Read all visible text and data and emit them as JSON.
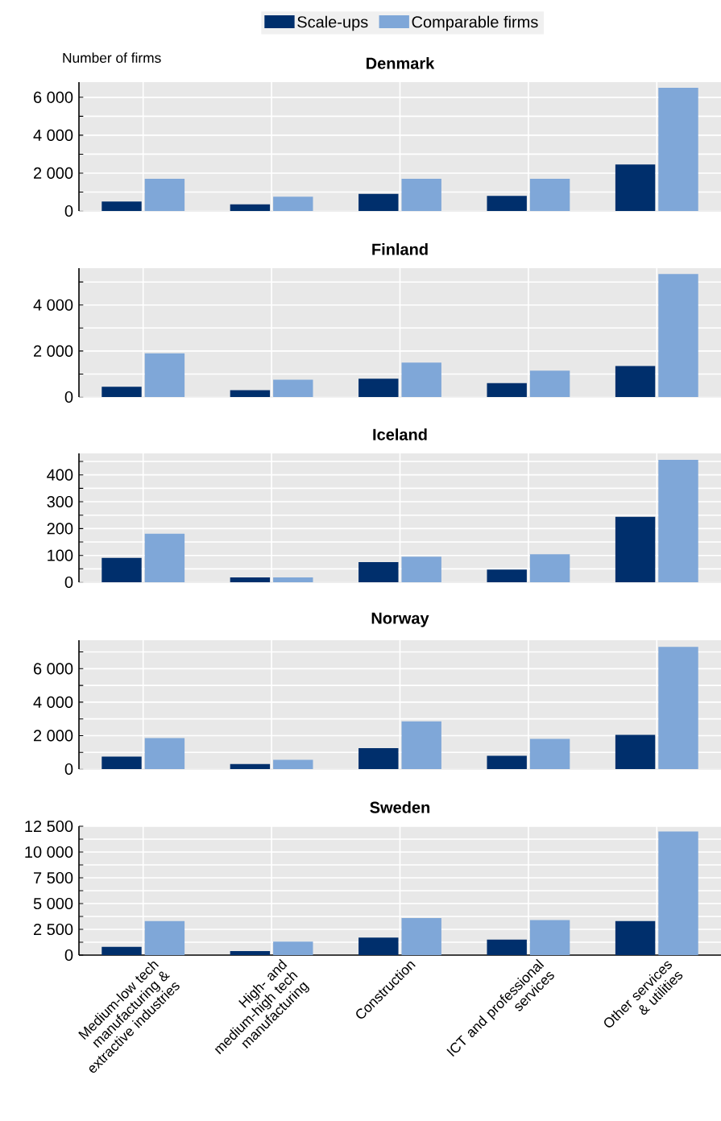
{
  "chart_data": [
    {
      "type": "bar",
      "title": "Denmark",
      "ylabel": "Number of firms",
      "categories": [
        null,
        null,
        null,
        null,
        null
      ],
      "series": [
        {
          "name": "Scale-ups",
          "color": "#002f6c",
          "values": [
            500,
            350,
            900,
            800,
            2450
          ]
        },
        {
          "name": "Comparable firms",
          "color": "#7fa7d8",
          "values": [
            1700,
            750,
            1700,
            1700,
            6500
          ]
        }
      ],
      "ylim": [
        0,
        6800
      ],
      "yticks": [
        {
          "value": 0,
          "label": "0"
        },
        {
          "value": 1000,
          "label": null
        },
        {
          "value": 2000,
          "label": "2 000"
        },
        {
          "value": 3000,
          "label": null
        },
        {
          "value": 4000,
          "label": "4 000"
        },
        {
          "value": 5000,
          "label": null
        },
        {
          "value": 6000,
          "label": "6 000"
        }
      ],
      "grid": true,
      "legend": "top",
      "tick_labels": "y"
    },
    {
      "type": "bar",
      "title": "Finland",
      "categories": [
        null,
        null,
        null,
        null,
        null
      ],
      "series": [
        {
          "color": "#002f6c",
          "values": [
            450,
            300,
            800,
            600,
            1350
          ]
        },
        {
          "color": "#7fa7d8",
          "values": [
            1900,
            750,
            1500,
            1150,
            5350
          ]
        }
      ],
      "ylim": [
        0,
        5600
      ],
      "yticks": [
        {
          "value": 0,
          "label": "0"
        },
        {
          "value": 1000,
          "label": null
        },
        {
          "value": 2000,
          "label": "2 000"
        },
        {
          "value": 3000,
          "label": null
        },
        {
          "value": 4000,
          "label": "4 000"
        },
        {
          "value": 5000,
          "label": null
        }
      ],
      "grid": true,
      "tick_labels": "y"
    },
    {
      "type": "bar",
      "title": "Iceland",
      "categories": [
        null,
        null,
        null,
        null,
        null
      ],
      "series": [
        {
          "color": "#002f6c",
          "values": [
            91,
            18,
            75,
            47,
            244
          ]
        },
        {
          "color": "#7fa7d8",
          "values": [
            181,
            18,
            95,
            104,
            456
          ]
        }
      ],
      "ylim": [
        0,
        480
      ],
      "yticks": [
        0,
        {
          "value": 50,
          "label": null
        },
        100,
        {
          "value": 150,
          "label": null
        },
        200,
        {
          "value": 250,
          "label": null
        },
        300,
        {
          "value": 350,
          "label": null
        },
        400,
        {
          "value": 450,
          "label": null
        }
      ],
      "grid": true,
      "tick_labels": "y"
    },
    {
      "type": "bar",
      "title": "Norway",
      "categories": [
        null,
        null,
        null,
        null,
        null
      ],
      "series": [
        {
          "color": "#002f6c",
          "values": [
            750,
            300,
            1250,
            800,
            2050
          ]
        },
        {
          "color": "#7fa7d8",
          "values": [
            1850,
            550,
            2850,
            1800,
            7300
          ]
        }
      ],
      "ylim": [
        0,
        7700
      ],
      "yticks": [
        {
          "value": 0,
          "label": "0"
        },
        {
          "value": 1000,
          "label": null
        },
        {
          "value": 2000,
          "label": "2 000"
        },
        {
          "value": 3000,
          "label": null
        },
        {
          "value": 4000,
          "label": "4 000"
        },
        {
          "value": 5000,
          "label": null
        },
        {
          "value": 6000,
          "label": "6 000"
        },
        {
          "value": 7000,
          "label": null
        }
      ],
      "grid": true,
      "tick_labels": "y"
    },
    {
      "type": "bar",
      "title": "Sweden",
      "categories": [
        "Medium-low tech manufacturing & extractive industries",
        "High- and medium-high tech manufacturing",
        "Construction",
        "ICT and professional services",
        "Other services & utilities"
      ],
      "series": [
        {
          "color": "#002f6c",
          "values": [
            800,
            400,
            1700,
            1500,
            3300
          ]
        },
        {
          "color": "#7fa7d8",
          "values": [
            3300,
            1300,
            3600,
            3400,
            12000
          ]
        }
      ],
      "ylim": [
        0,
        12500
      ],
      "yticks": [
        {
          "value": 0,
          "label": "0"
        },
        {
          "value": 1250,
          "label": null
        },
        {
          "value": 2500,
          "label": "2 500"
        },
        {
          "value": 3750,
          "label": null
        },
        {
          "value": 5000,
          "label": "5 000"
        },
        {
          "value": 6250,
          "label": null
        },
        {
          "value": 7500,
          "label": "7 500"
        },
        {
          "value": 8750,
          "label": null
        },
        {
          "value": 10000,
          "label": "10 000"
        },
        {
          "value": 11250,
          "label": null
        },
        {
          "value": 12500,
          "label": "12 500"
        }
      ],
      "grid": true
    }
  ]
}
